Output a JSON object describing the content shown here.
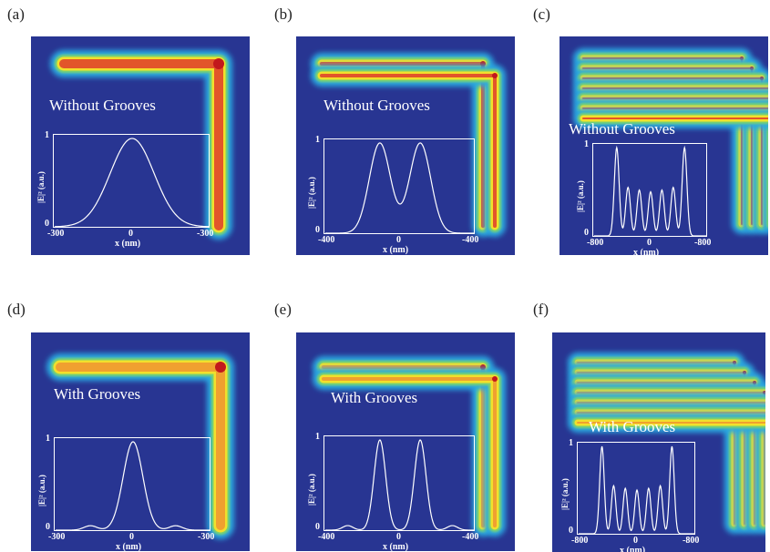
{
  "colors": {
    "background_field": "#283592",
    "inset_line": "#ffffff"
  },
  "panels": [
    {
      "label": "(a)",
      "caption": "Without Grooves",
      "guides": 1,
      "grooves": false,
      "inset": {
        "y_top": "1",
        "y_bottom": "0",
        "x_left": "-300",
        "x_mid": "0",
        "x_right": "-300",
        "ylabel": "|E|² (a.u.)",
        "xlabel": "x (nm)"
      }
    },
    {
      "label": "(b)",
      "caption": "Without Grooves",
      "guides": 2,
      "grooves": false,
      "inset": {
        "y_top": "1",
        "y_bottom": "0",
        "x_left": "-400",
        "x_mid": "0",
        "x_right": "-400",
        "ylabel": "|E|² (a.u.)",
        "xlabel": "x (nm)"
      }
    },
    {
      "label": "(c)",
      "caption": "Without Grooves",
      "guides": 7,
      "grooves": false,
      "inset": {
        "y_top": "1",
        "y_bottom": "0",
        "x_left": "-800",
        "x_mid": "0",
        "x_right": "-800",
        "ylabel": "|E|² (a.u.)",
        "xlabel": "x (nm)"
      }
    },
    {
      "label": "(d)",
      "caption": "With Grooves",
      "guides": 1,
      "grooves": true,
      "inset": {
        "y_top": "1",
        "y_bottom": "0",
        "x_left": "-300",
        "x_mid": "0",
        "x_right": "-300",
        "ylabel": "|E|² (a.u.)",
        "xlabel": "x (nm)"
      }
    },
    {
      "label": "(e)",
      "caption": "With Grooves",
      "guides": 2,
      "grooves": true,
      "inset": {
        "y_top": "1",
        "y_bottom": "0",
        "x_left": "-400",
        "x_mid": "0",
        "x_right": "-400",
        "ylabel": "|E|² (a.u.)",
        "xlabel": "x (nm)"
      }
    },
    {
      "label": "(f)",
      "caption": "With Grooves",
      "guides": 7,
      "grooves": true,
      "inset": {
        "y_top": "1",
        "y_bottom": "0",
        "x_left": "-800",
        "x_mid": "0",
        "x_right": "-800",
        "ylabel": "|E|² (a.u.)",
        "xlabel": "x (nm)"
      }
    }
  ]
}
